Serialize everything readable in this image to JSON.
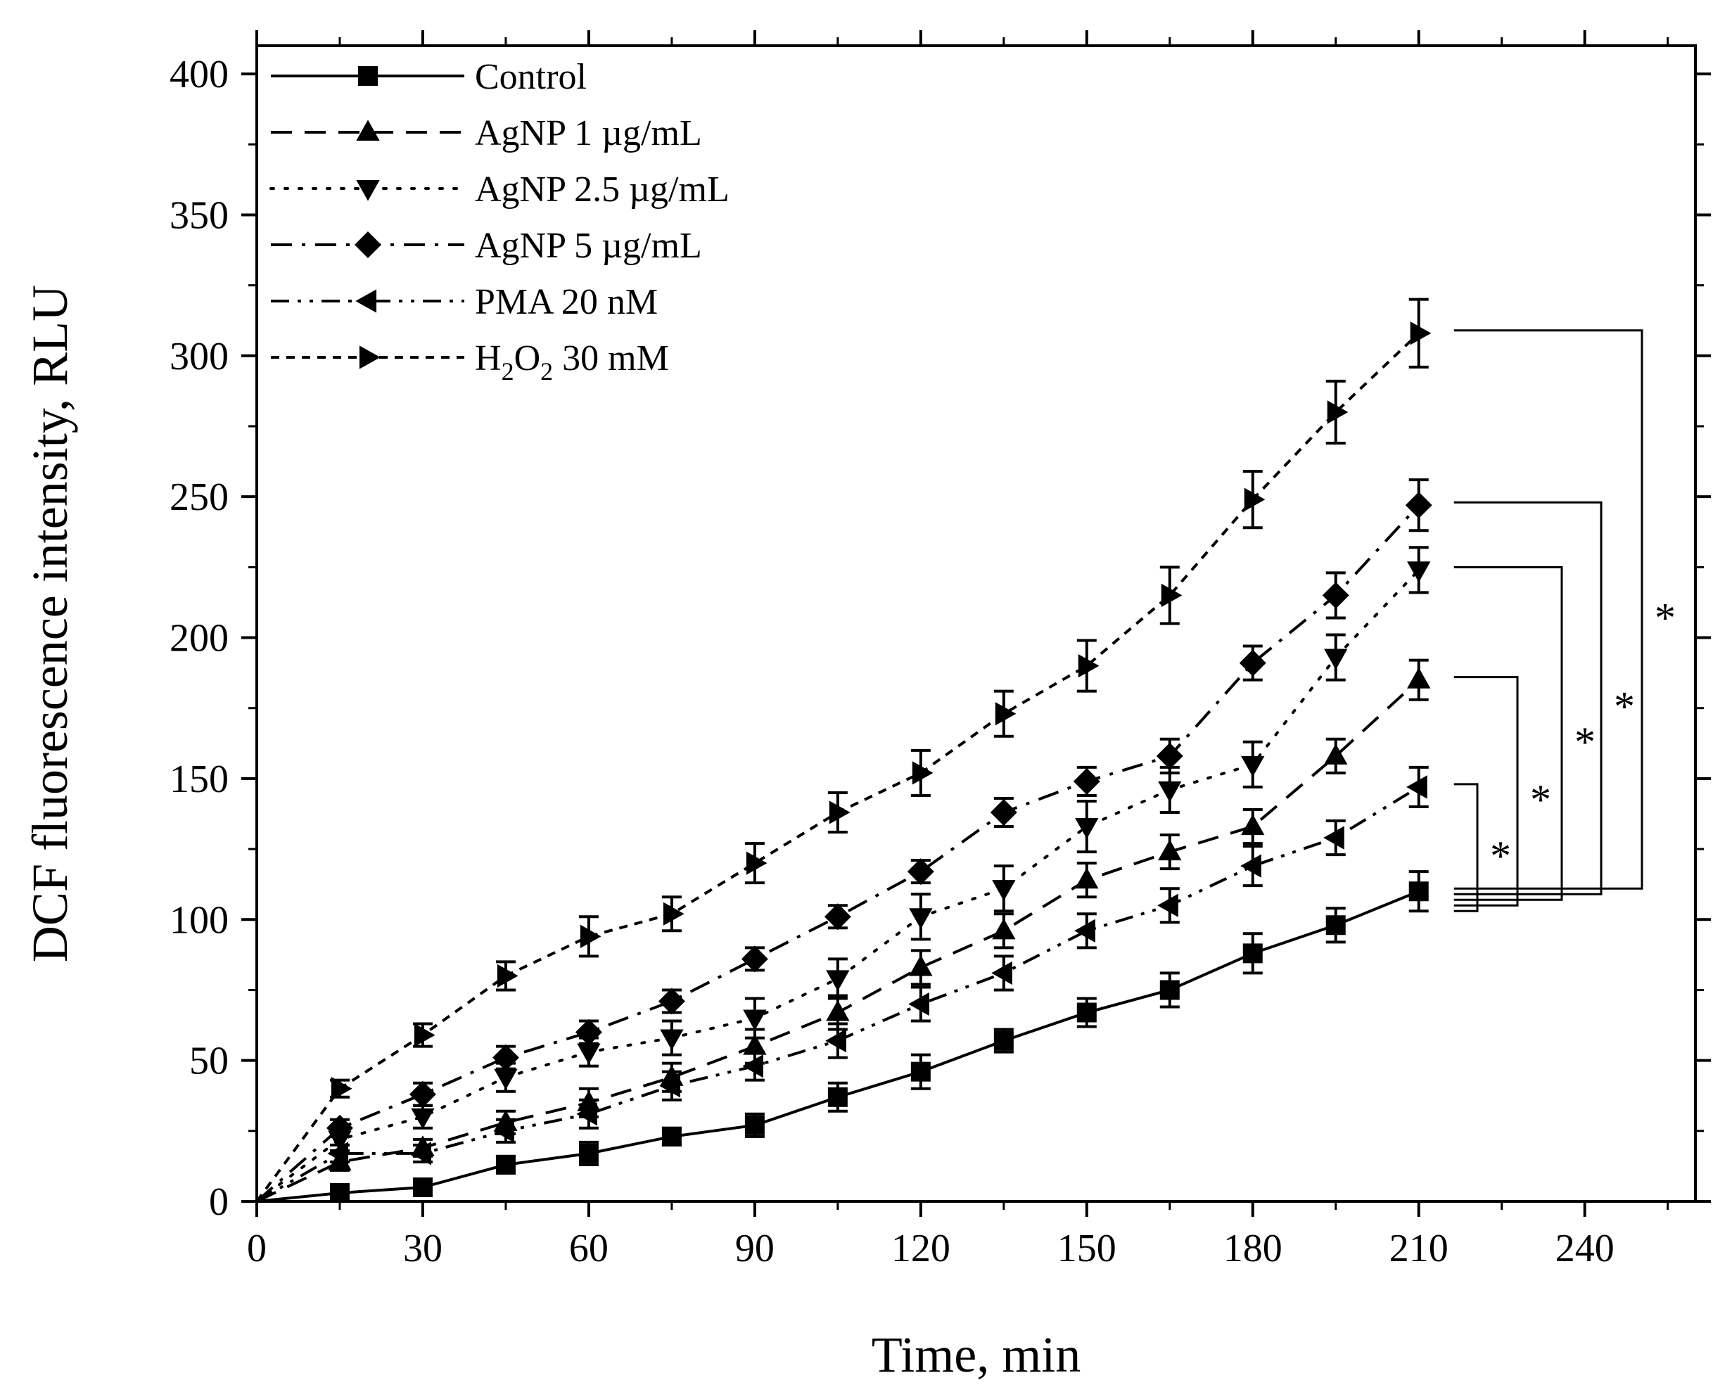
{
  "chart_data": {
    "type": "line",
    "title": "",
    "xlabel": "Time, min",
    "ylabel": "DCF fluorescence intensity, RLU",
    "xlim": [
      0,
      260
    ],
    "ylim": [
      0,
      410
    ],
    "xticks": [
      0,
      30,
      60,
      90,
      120,
      150,
      180,
      210,
      240
    ],
    "yticks": [
      0,
      50,
      100,
      150,
      200,
      250,
      300,
      350,
      400
    ],
    "x": [
      0,
      15,
      30,
      45,
      60,
      75,
      90,
      105,
      120,
      135,
      150,
      165,
      180,
      195,
      210
    ],
    "legend_position": "top-left",
    "series": [
      {
        "name": "Control",
        "line_style": "solid",
        "marker": "square",
        "values": [
          0,
          3,
          5,
          13,
          17,
          23,
          27,
          37,
          46,
          57,
          67,
          75,
          88,
          98,
          110
        ],
        "errors": [
          0,
          2,
          3,
          3,
          4,
          3,
          4,
          5,
          6,
          4,
          5,
          6,
          7,
          6,
          7
        ]
      },
      {
        "name": "AgNP 1 µg/mL",
        "line_style": "dashed",
        "marker": "triangle-up",
        "values": [
          0,
          14,
          19,
          28,
          35,
          44,
          55,
          67,
          83,
          96,
          114,
          124,
          133,
          158,
          185
        ],
        "errors": [
          0,
          3,
          3,
          4,
          5,
          5,
          6,
          6,
          6,
          6,
          6,
          6,
          6,
          6,
          7
        ]
      },
      {
        "name": "AgNP 2.5 µg/mL",
        "line_style": "dotted",
        "marker": "triangle-down",
        "values": [
          0,
          22,
          30,
          44,
          53,
          58,
          65,
          79,
          101,
          111,
          133,
          146,
          155,
          193,
          224
        ],
        "errors": [
          0,
          4,
          4,
          5,
          5,
          6,
          7,
          7,
          8,
          8,
          9,
          8,
          8,
          8,
          8
        ]
      },
      {
        "name": "AgNP 5 µg/mL",
        "line_style": "dash-dot",
        "marker": "diamond",
        "values": [
          0,
          26,
          38,
          51,
          60,
          71,
          86,
          101,
          117,
          138,
          149,
          158,
          191,
          215,
          247
        ],
        "errors": [
          0,
          3,
          4,
          4,
          4,
          4,
          4,
          4,
          4,
          5,
          5,
          6,
          6,
          8,
          9
        ]
      },
      {
        "name": "PMA 20 nM",
        "line_style": "dash-dot-dot",
        "marker": "triangle-left",
        "values": [
          0,
          17,
          17,
          25,
          31,
          41,
          48,
          57,
          70,
          81,
          96,
          105,
          119,
          129,
          147
        ],
        "errors": [
          0,
          3,
          3,
          4,
          5,
          5,
          5,
          6,
          6,
          6,
          6,
          6,
          7,
          6,
          7
        ]
      },
      {
        "name": "H2O2 30 mM",
        "line_style": "short-dashed",
        "marker": "triangle-right",
        "values": [
          0,
          40,
          59,
          80,
          94,
          102,
          120,
          138,
          152,
          173,
          190,
          215,
          249,
          280,
          308
        ],
        "errors": [
          0,
          3,
          4,
          5,
          7,
          6,
          7,
          7,
          8,
          8,
          9,
          10,
          10,
          11,
          12
        ]
      }
    ],
    "significance": [
      {
        "series": "PMA 20 nM",
        "label": "*"
      },
      {
        "series": "AgNP 1 µg/mL",
        "label": "*"
      },
      {
        "series": "AgNP 2.5 µg/mL",
        "label": "*"
      },
      {
        "series": "AgNP 5 µg/mL",
        "label": "*"
      },
      {
        "series": "H2O2 30 mM",
        "label": "*"
      }
    ],
    "colors": {
      "ink": "#000000",
      "background": "#ffffff"
    }
  }
}
